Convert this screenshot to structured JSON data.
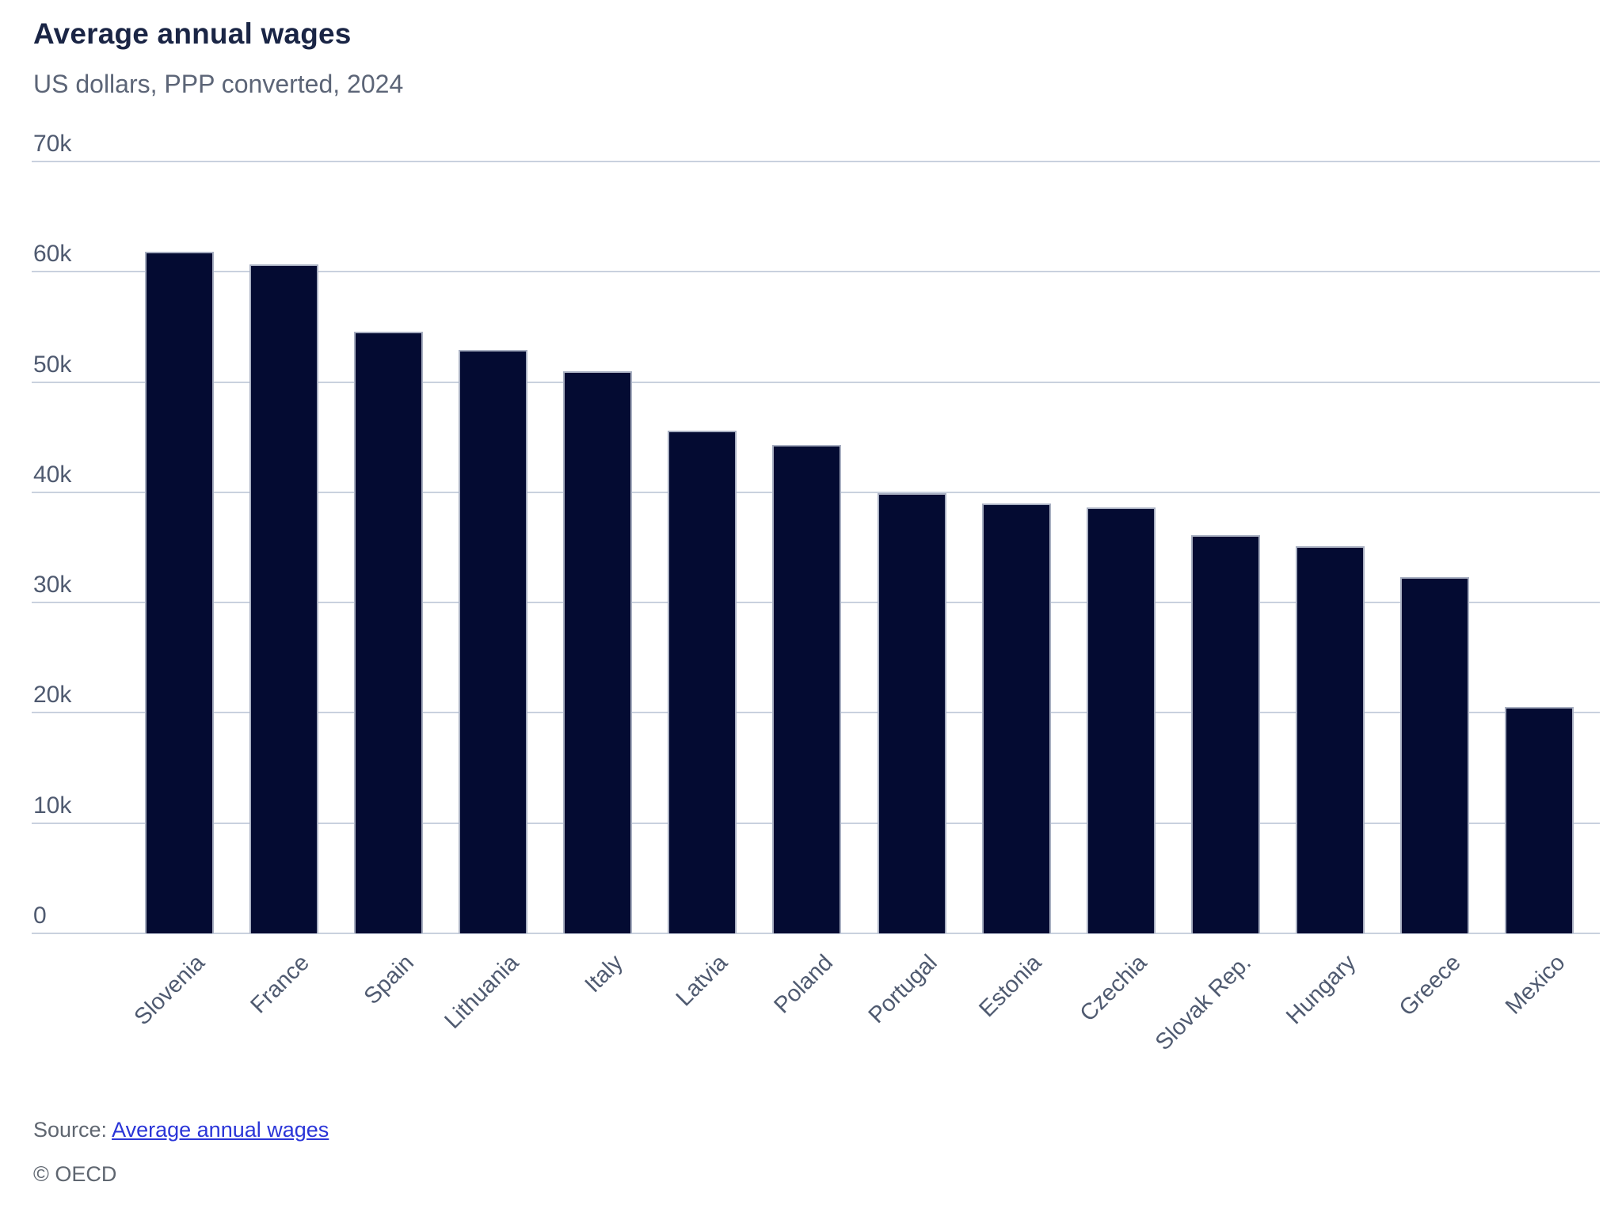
{
  "chart_data": {
    "type": "bar",
    "title": "Average annual wages",
    "subtitle": "US dollars, PPP converted, 2024",
    "categories": [
      "Slovenia",
      "France",
      "Spain",
      "Lithuania",
      "Italy",
      "Latvia",
      "Poland",
      "Portugal",
      "Estonia",
      "Czechia",
      "Slovak Rep.",
      "Hungary",
      "Greece",
      "Mexico"
    ],
    "values": [
      61800,
      60700,
      54600,
      52900,
      51000,
      45600,
      44300,
      39900,
      39000,
      38600,
      36100,
      35100,
      32300,
      20500
    ],
    "ylim": [
      0,
      70000
    ],
    "ytick_interval": 10000,
    "ytick_labels": [
      "0",
      "10k",
      "20k",
      "30k",
      "40k",
      "50k",
      "60k",
      "70k"
    ],
    "grid": true,
    "legend": false,
    "xlabel": "",
    "ylabel": ""
  },
  "footer": {
    "source_label": "Source:",
    "source_link_text": "Average annual wages",
    "copyright": "© OECD"
  },
  "colors": {
    "background": "#ffffff",
    "bar": "#040b32",
    "bar_border": "#c5cdda",
    "gridline": "#c9d1de",
    "title": "#1a2545",
    "subtitle": "#5c6577",
    "axis_label": "#4f5a70",
    "link": "#2a35d8",
    "footer_text": "#5f6670"
  }
}
